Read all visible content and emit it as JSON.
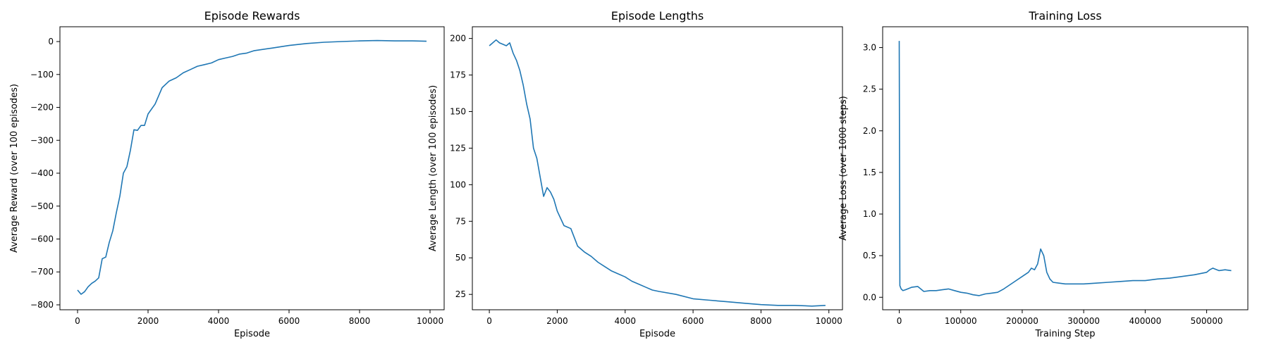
{
  "series_color": "#1f77b4",
  "chart_data": [
    {
      "type": "line",
      "title": "Episode Rewards",
      "xlabel": "Episode",
      "ylabel": "Average Reward (over 100 episodes)",
      "xlim": [
        -500,
        10400
      ],
      "ylim": [
        -815,
        45
      ],
      "xticks": [
        0,
        2000,
        4000,
        6000,
        8000,
        10000
      ],
      "xtick_labels": [
        "0",
        "2000",
        "4000",
        "6000",
        "8000",
        "10000"
      ],
      "yticks": [
        -800,
        -700,
        -600,
        -500,
        -400,
        -300,
        -200,
        -100,
        0
      ],
      "ytick_labels": [
        "−800",
        "−700",
        "−600",
        "−500",
        "−400",
        "−300",
        "−200",
        "−100",
        "0"
      ],
      "grid": false,
      "x": [
        0,
        100,
        200,
        300,
        400,
        500,
        600,
        700,
        800,
        900,
        1000,
        1100,
        1200,
        1300,
        1400,
        1500,
        1600,
        1700,
        1800,
        1900,
        2000,
        2200,
        2400,
        2600,
        2800,
        3000,
        3200,
        3400,
        3600,
        3800,
        4000,
        4200,
        4400,
        4600,
        4800,
        5000,
        5500,
        6000,
        6500,
        7000,
        7500,
        8000,
        8500,
        9000,
        9500,
        9900
      ],
      "y": [
        -755,
        -768,
        -760,
        -745,
        -735,
        -728,
        -718,
        -660,
        -655,
        -610,
        -575,
        -520,
        -470,
        -400,
        -380,
        -330,
        -268,
        -270,
        -255,
        -255,
        -220,
        -190,
        -140,
        -120,
        -110,
        -95,
        -85,
        -75,
        -70,
        -65,
        -55,
        -50,
        -45,
        -38,
        -35,
        -28,
        -20,
        -12,
        -6,
        -2,
        0,
        2,
        3,
        2,
        2,
        1
      ]
    },
    {
      "type": "line",
      "title": "Episode Lengths",
      "xlabel": "Episode",
      "ylabel": "Average Length (over 100 episodes)",
      "xlim": [
        -500,
        10400
      ],
      "ylim": [
        14.5,
        208
      ],
      "xticks": [
        0,
        2000,
        4000,
        6000,
        8000,
        10000
      ],
      "xtick_labels": [
        "0",
        "2000",
        "4000",
        "6000",
        "8000",
        "10000"
      ],
      "yticks": [
        25,
        50,
        75,
        100,
        125,
        150,
        175,
        200
      ],
      "ytick_labels": [
        "25",
        "50",
        "75",
        "100",
        "125",
        "150",
        "175",
        "200"
      ],
      "grid": false,
      "x": [
        0,
        100,
        200,
        300,
        400,
        500,
        600,
        700,
        800,
        900,
        1000,
        1100,
        1200,
        1300,
        1400,
        1500,
        1600,
        1700,
        1800,
        1900,
        2000,
        2200,
        2400,
        2600,
        2800,
        3000,
        3200,
        3400,
        3600,
        3800,
        4000,
        4200,
        4400,
        4600,
        4800,
        5000,
        5500,
        6000,
        6500,
        7000,
        7500,
        8000,
        8500,
        9000,
        9500,
        9900
      ],
      "y": [
        195,
        197,
        199,
        197,
        196,
        195,
        197,
        190,
        185,
        178,
        168,
        155,
        145,
        125,
        118,
        105,
        92,
        98,
        95,
        90,
        82,
        72,
        70,
        58,
        54,
        51,
        47,
        44,
        41,
        39,
        37,
        34,
        32,
        30,
        28,
        27,
        25,
        22,
        21,
        20,
        19,
        18,
        17.5,
        17.5,
        17,
        17.5
      ]
    },
    {
      "type": "line",
      "title": "Training Loss",
      "xlabel": "Training Step",
      "ylabel": "Average Loss (over 1000 steps)",
      "xlim": [
        -27000,
        567000
      ],
      "ylim": [
        -0.15,
        3.25
      ],
      "xticks": [
        0,
        100000,
        200000,
        300000,
        400000,
        500000
      ],
      "xtick_labels": [
        "0",
        "100000",
        "200000",
        "300000",
        "400000",
        "500000"
      ],
      "yticks": [
        0.0,
        0.5,
        1.0,
        1.5,
        2.0,
        2.5,
        3.0
      ],
      "ytick_labels": [
        "0.0",
        "0.5",
        "1.0",
        "1.5",
        "2.0",
        "2.5",
        "3.0"
      ],
      "grid": false,
      "x": [
        0,
        1000,
        3000,
        6000,
        10000,
        20000,
        30000,
        40000,
        50000,
        60000,
        70000,
        80000,
        90000,
        100000,
        110000,
        120000,
        130000,
        140000,
        150000,
        160000,
        170000,
        180000,
        190000,
        200000,
        210000,
        215000,
        220000,
        225000,
        230000,
        235000,
        240000,
        245000,
        250000,
        260000,
        270000,
        280000,
        300000,
        320000,
        340000,
        360000,
        380000,
        400000,
        420000,
        440000,
        460000,
        480000,
        500000,
        505000,
        510000,
        520000,
        530000,
        540000
      ],
      "y": [
        3.08,
        0.14,
        0.1,
        0.08,
        0.09,
        0.12,
        0.13,
        0.07,
        0.08,
        0.08,
        0.09,
        0.1,
        0.08,
        0.06,
        0.05,
        0.03,
        0.02,
        0.04,
        0.05,
        0.06,
        0.1,
        0.15,
        0.2,
        0.25,
        0.3,
        0.35,
        0.33,
        0.4,
        0.58,
        0.5,
        0.3,
        0.22,
        0.18,
        0.17,
        0.16,
        0.16,
        0.16,
        0.17,
        0.18,
        0.19,
        0.2,
        0.2,
        0.22,
        0.23,
        0.25,
        0.27,
        0.3,
        0.33,
        0.35,
        0.32,
        0.33,
        0.32
      ]
    }
  ]
}
